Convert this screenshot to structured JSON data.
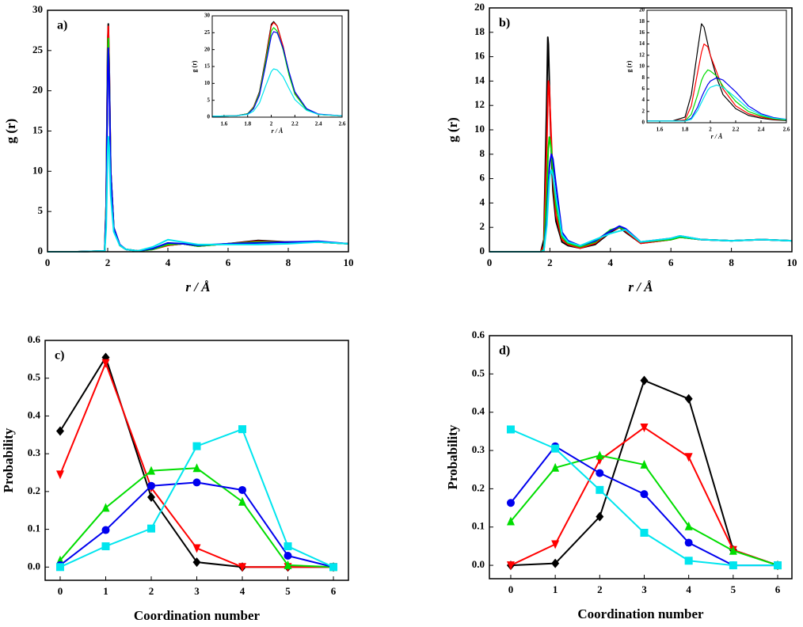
{
  "chart_data": [
    {
      "type": "line",
      "label": "a)",
      "xlabel": "r / Å",
      "ylabel": "g (r)",
      "xlim": [
        0,
        10
      ],
      "xticks": [
        0,
        2,
        4,
        6,
        8,
        10
      ],
      "ylim": [
        0,
        30
      ],
      "yticks": [
        0,
        5,
        10,
        15,
        20,
        25,
        30
      ],
      "x": [
        0,
        1,
        1.9,
        1.95,
        2.0,
        2.02,
        2.05,
        2.1,
        2.2,
        2.4,
        2.6,
        3,
        3.5,
        4,
        4.5,
        5,
        6,
        7,
        8,
        9,
        10
      ],
      "series": [
        {
          "color": "#000000",
          "values": [
            0,
            0,
            0.1,
            6,
            26,
            28.3,
            23,
            10,
            3,
            0.8,
            0.3,
            0.1,
            0.3,
            0.8,
            1.0,
            0.7,
            1.0,
            1.4,
            1.2,
            1.2,
            1.0
          ]
        },
        {
          "color": "#ff0000",
          "values": [
            0,
            0,
            0.1,
            6,
            25.5,
            28,
            23,
            10,
            3,
            0.8,
            0.3,
            0.1,
            0.3,
            0.8,
            1.0,
            0.7,
            1.0,
            1.3,
            1.2,
            1.2,
            1.0
          ]
        },
        {
          "color": "#00dd00",
          "values": [
            0,
            0,
            0.1,
            5.5,
            24,
            26.5,
            22,
            10,
            3,
            0.8,
            0.3,
            0.1,
            0.3,
            0.9,
            1.0,
            0.7,
            1.0,
            1.2,
            1.2,
            1.2,
            1.0
          ]
        },
        {
          "color": "#0000ee",
          "values": [
            0,
            0,
            0.1,
            5,
            22.5,
            25.3,
            21.5,
            10,
            3,
            0.9,
            0.3,
            0.1,
            0.4,
            1.1,
            1.0,
            0.8,
            1.0,
            1.1,
            1.2,
            1.3,
            1.0
          ]
        },
        {
          "color": "#00e5ee",
          "values": [
            0,
            0,
            0.1,
            3,
            12.5,
            14.3,
            13,
            7,
            2.5,
            0.8,
            0.3,
            0.1,
            0.6,
            1.5,
            1.2,
            0.9,
            0.9,
            0.9,
            1.0,
            1.2,
            1.0
          ]
        }
      ]
    },
    {
      "type": "line",
      "xlabel": "r / Å",
      "ylabel": "g (r)",
      "xlim": [
        1.5,
        2.6
      ],
      "xticks": [
        1.6,
        1.8,
        2.0,
        2.2,
        2.4,
        2.6
      ],
      "ylim": [
        0,
        30
      ],
      "yticks": [
        0,
        5,
        10,
        15,
        20,
        25,
        30
      ],
      "x": [
        1.5,
        1.7,
        1.8,
        1.85,
        1.9,
        1.95,
        2.0,
        2.02,
        2.05,
        2.1,
        2.15,
        2.2,
        2.3,
        2.4,
        2.6
      ],
      "series": [
        {
          "color": "#000000",
          "values": [
            0.3,
            0.4,
            1,
            3,
            7.5,
            17,
            27.5,
            28.3,
            27,
            21,
            13,
            7,
            2.2,
            0.8,
            0.4
          ]
        },
        {
          "color": "#ff0000",
          "values": [
            0.3,
            0.4,
            1,
            3,
            7.2,
            16.5,
            27,
            28,
            27,
            21,
            13,
            7,
            2.2,
            0.8,
            0.4
          ]
        },
        {
          "color": "#00dd00",
          "values": [
            0.3,
            0.4,
            1,
            2.8,
            7,
            16,
            25.5,
            26.5,
            25.5,
            20,
            12.5,
            6.8,
            2.2,
            0.8,
            0.4
          ]
        },
        {
          "color": "#0000ee",
          "values": [
            0.3,
            0.4,
            0.9,
            2.5,
            6.5,
            15,
            24,
            25.3,
            25,
            20.5,
            13.5,
            7.5,
            2.5,
            0.9,
            0.4
          ]
        },
        {
          "color": "#00e5ee",
          "values": [
            0.3,
            0.4,
            0.8,
            1.8,
            4.2,
            9,
            13.5,
            14.3,
            14,
            12,
            8.5,
            5.2,
            2,
            0.8,
            0.4
          ]
        }
      ]
    },
    {
      "type": "line",
      "label": "b)",
      "xlabel": "r / Å",
      "ylabel": "g (r)",
      "xlim": [
        0,
        10
      ],
      "xticks": [
        0,
        2,
        4,
        6,
        8,
        10
      ],
      "ylim": [
        0,
        20
      ],
      "yticks": [
        0,
        2,
        4,
        6,
        8,
        10,
        12,
        14,
        16,
        18,
        20
      ],
      "x": [
        0,
        1,
        1.7,
        1.8,
        1.9,
        1.93,
        1.95,
        1.98,
        2.0,
        2.05,
        2.1,
        2.2,
        2.4,
        2.6,
        3,
        3.5,
        4,
        4.3,
        4.5,
        5,
        6,
        6.3,
        7,
        8,
        9,
        10
      ],
      "series": [
        {
          "color": "#000000",
          "values": [
            0,
            0,
            0,
            1,
            13,
            17.6,
            17,
            14,
            12,
            8,
            5,
            2.5,
            0.8,
            0.5,
            0.3,
            0.6,
            1.6,
            2.0,
            1.6,
            0.7,
            1.0,
            1.2,
            1.0,
            0.9,
            1.0,
            0.9
          ]
        },
        {
          "color": "#ff0000",
          "values": [
            0,
            0,
            0,
            0.5,
            9,
            12.5,
            14,
            13.5,
            12,
            9,
            6,
            3,
            1,
            0.6,
            0.3,
            0.7,
            1.7,
            2.0,
            1.7,
            0.7,
            1.0,
            1.2,
            1.0,
            0.9,
            1.0,
            0.9
          ]
        },
        {
          "color": "#00dd00",
          "values": [
            0,
            0,
            0,
            0.2,
            5,
            7.5,
            8.5,
            9.4,
            9.2,
            8.3,
            6.5,
            3.8,
            1.2,
            0.7,
            0.4,
            0.8,
            1.8,
            2.0,
            1.8,
            0.8,
            1.0,
            1.2,
            1.0,
            0.9,
            1.0,
            0.9
          ]
        },
        {
          "color": "#0000ee",
          "values": [
            0,
            0,
            0,
            0.1,
            2.8,
            4.5,
            5.5,
            6.8,
            7.4,
            8,
            7.6,
            5.5,
            1.6,
            0.9,
            0.5,
            0.9,
            1.7,
            2.1,
            1.9,
            0.8,
            1.1,
            1.3,
            1.0,
            0.9,
            1.0,
            0.9
          ]
        },
        {
          "color": "#00e5ee",
          "values": [
            0,
            0,
            0,
            0.1,
            2.2,
            3.6,
            4.5,
            5.8,
            6.3,
            6.7,
            6.3,
            4.5,
            1.4,
            0.8,
            0.5,
            1.0,
            1.5,
            1.7,
            1.8,
            0.8,
            1.1,
            1.3,
            1.0,
            0.9,
            1.0,
            0.9
          ]
        }
      ]
    },
    {
      "type": "line",
      "xlabel": "r / Å",
      "ylabel": "g (r)",
      "xlim": [
        1.5,
        2.6
      ],
      "xticks": [
        1.6,
        1.8,
        2.0,
        2.2,
        2.4,
        2.6
      ],
      "ylim": [
        0,
        20
      ],
      "yticks": [
        0,
        2,
        4,
        6,
        8,
        10,
        12,
        14,
        16,
        18,
        20
      ],
      "x": [
        1.5,
        1.7,
        1.8,
        1.85,
        1.9,
        1.93,
        1.95,
        1.98,
        2.0,
        2.05,
        2.1,
        2.2,
        2.3,
        2.4,
        2.5,
        2.6
      ],
      "series": [
        {
          "color": "#000000",
          "values": [
            0.3,
            0.3,
            1,
            5,
            13,
            17.6,
            17,
            14,
            12,
            8,
            5,
            2.5,
            1.3,
            0.8,
            0.5,
            0.4
          ]
        },
        {
          "color": "#ff0000",
          "values": [
            0.3,
            0.3,
            0.5,
            3,
            9,
            12.5,
            14,
            13.5,
            12,
            9,
            6,
            3,
            1.6,
            1,
            0.6,
            0.5
          ]
        },
        {
          "color": "#00dd00",
          "values": [
            0.3,
            0.3,
            0.3,
            1.5,
            5,
            7.5,
            8.5,
            9.4,
            9.2,
            8.3,
            6.5,
            3.8,
            2,
            1.2,
            0.7,
            0.5
          ]
        },
        {
          "color": "#0000ee",
          "values": [
            0.3,
            0.3,
            0.3,
            0.8,
            2.8,
            4.5,
            5.5,
            6.8,
            7.4,
            8.0,
            7.6,
            5.5,
            3,
            1.6,
            0.9,
            0.6
          ]
        },
        {
          "color": "#00e5ee",
          "values": [
            0.3,
            0.3,
            0.3,
            0.6,
            2.2,
            3.6,
            4.5,
            5.8,
            6.3,
            6.7,
            6.3,
            4.5,
            2.5,
            1.4,
            0.8,
            0.6
          ]
        }
      ]
    },
    {
      "type": "line",
      "label": "c)",
      "xlabel": "Coordination number",
      "ylabel": "Probability",
      "xlim": [
        -0.33,
        6.33
      ],
      "xticks": [
        0,
        1,
        2,
        3,
        4,
        5,
        6
      ],
      "ylim": [
        -0.035,
        0.6
      ],
      "yticks": [
        {
          "value": 0,
          "label": "0.0"
        },
        0.1,
        0.2,
        0.3,
        0.4,
        0.5,
        0.6
      ],
      "x": [
        0,
        1,
        2,
        3,
        4,
        5,
        6
      ],
      "series": [
        {
          "color": "#000000",
          "marker": "diamond",
          "values": [
            0.36,
            0.555,
            0.185,
            0.013,
            0,
            0,
            0
          ]
        },
        {
          "color": "#ff0000",
          "marker": "triangle-down",
          "values": [
            0.245,
            0.54,
            0.21,
            0.05,
            0,
            0,
            0
          ]
        },
        {
          "color": "#00dd00",
          "marker": "triangle-up",
          "values": [
            0.018,
            0.157,
            0.255,
            0.262,
            0.173,
            0.005,
            0
          ]
        },
        {
          "color": "#0000ee",
          "marker": "circle",
          "values": [
            0.005,
            0.098,
            0.215,
            0.224,
            0.204,
            0.03,
            0
          ]
        },
        {
          "color": "#00e5ee",
          "marker": "square",
          "values": [
            0,
            0.055,
            0.102,
            0.32,
            0.365,
            0.055,
            0
          ]
        }
      ]
    },
    {
      "type": "line",
      "label": "d)",
      "xlabel": "Coordination number",
      "ylabel": "Probability",
      "xlim": [
        -0.48,
        6.32
      ],
      "xticks": [
        0,
        1,
        2,
        3,
        4,
        5,
        6
      ],
      "ylim": [
        -0.035,
        0.6
      ],
      "yticks": [
        {
          "value": 0,
          "label": "0.0"
        },
        0.1,
        0.2,
        0.3,
        0.4,
        0.5,
        0.6
      ],
      "x": [
        0,
        1,
        2,
        3,
        4,
        5,
        6
      ],
      "series": [
        {
          "color": "#000000",
          "marker": "diamond",
          "values": [
            0,
            0.005,
            0.127,
            0.483,
            0.435,
            0.04,
            0
          ]
        },
        {
          "color": "#ff0000",
          "marker": "triangle-down",
          "values": [
            0,
            0.055,
            0.275,
            0.36,
            0.283,
            0.04,
            0
          ]
        },
        {
          "color": "#00dd00",
          "marker": "triangle-up",
          "values": [
            0.115,
            0.255,
            0.287,
            0.263,
            0.102,
            0.038,
            0
          ]
        },
        {
          "color": "#0000ee",
          "marker": "circle",
          "values": [
            0.163,
            0.311,
            0.241,
            0.186,
            0.059,
            0,
            0
          ]
        },
        {
          "color": "#00e5ee",
          "marker": "square",
          "values": [
            0.355,
            0.305,
            0.197,
            0.085,
            0.012,
            0,
            0
          ]
        }
      ]
    }
  ]
}
